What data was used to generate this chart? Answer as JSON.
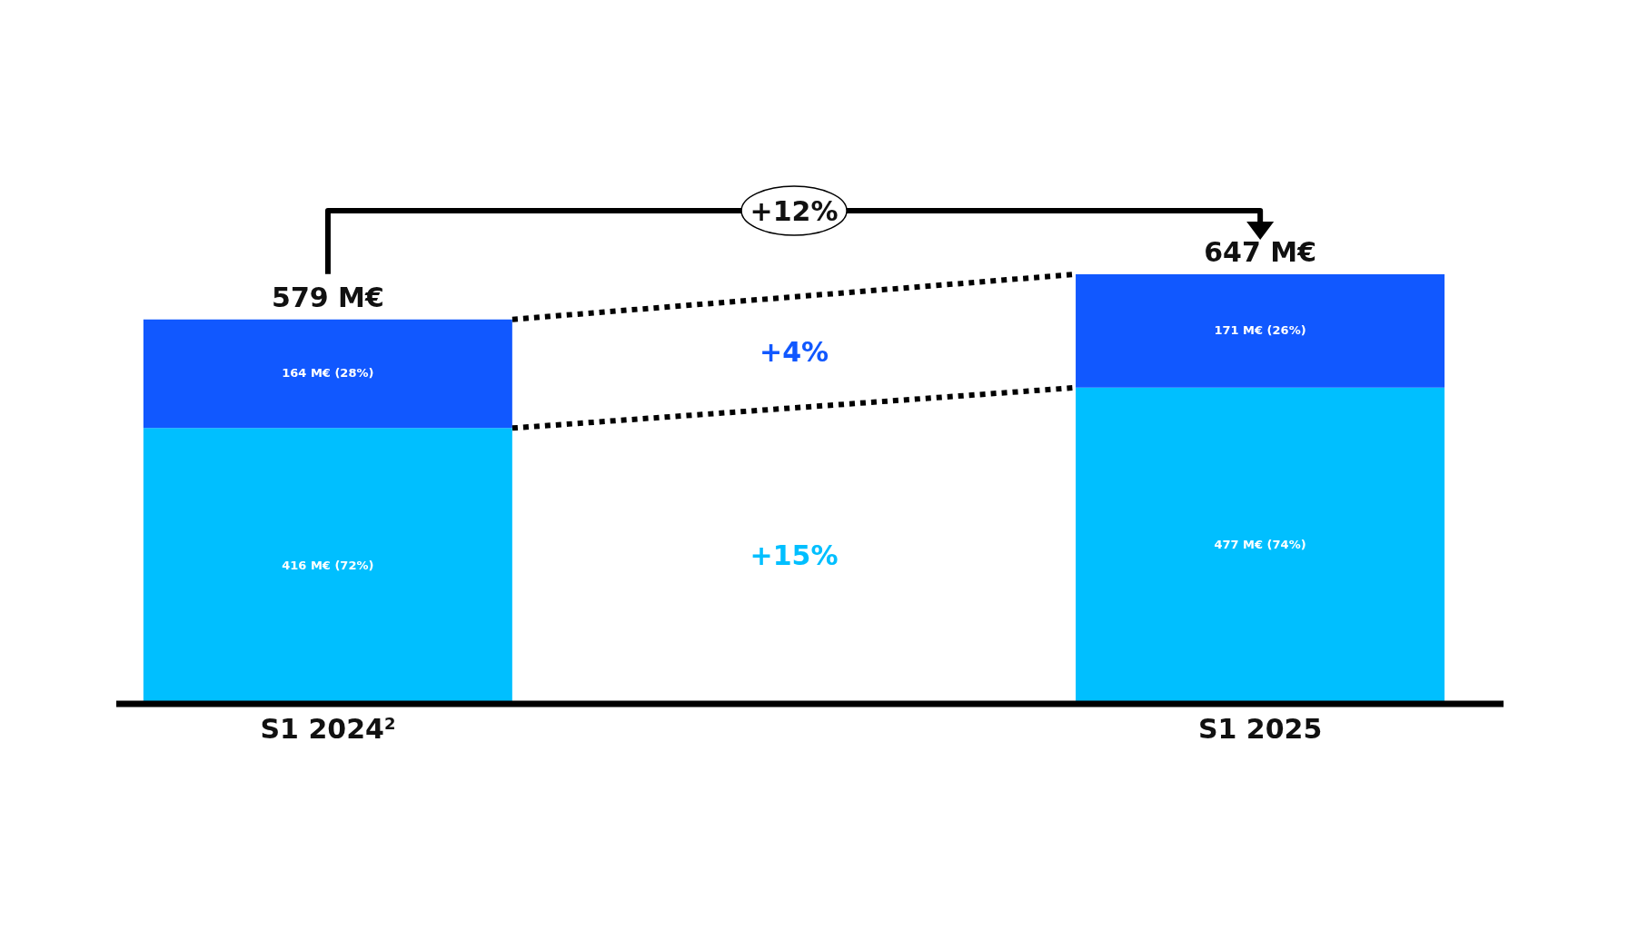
{
  "chart_data": {
    "type": "bar",
    "stacked": true,
    "categories": [
      "S1 2024$^{2}$",
      "S1 2025"
    ],
    "series": [
      {
        "color": "#00bfff",
        "values": [
          416,
          477
        ],
        "value_labels": [
          "416 M€ (72%)",
          "477 M€ (74%)"
        ]
      },
      {
        "color": "#1158ff",
        "values": [
          164,
          171
        ],
        "value_labels": [
          "164 M€ (28%)",
          "171 M€ (26%)"
        ]
      }
    ],
    "totals": [
      "579 M€",
      "647 M€"
    ],
    "annotations": [
      "+12%",
      "+4%",
      "+15%"
    ],
    "grid": false,
    "legend": false
  }
}
